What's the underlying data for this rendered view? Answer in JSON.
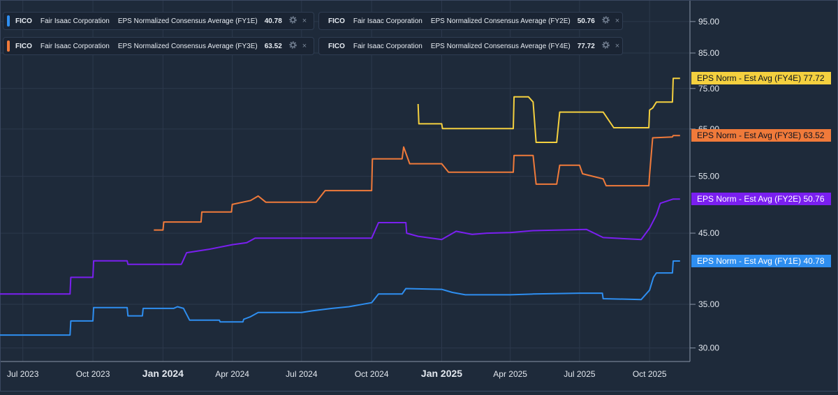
{
  "colors": {
    "background": "#1e2a3a",
    "grid": "#2c394c",
    "axis_text": "#e3e8ef",
    "fy1": "#2e8ef0",
    "fy2": "#7a1ff0",
    "fy3": "#f07a3a",
    "fy4": "#f4d03f"
  },
  "legend": [
    {
      "ticker": "FICO",
      "company": "Fair Isaac Corporation",
      "metric": "EPS Normalized Consensus Average (FY1E)",
      "value": "40.78",
      "color_key": "fy1"
    },
    {
      "ticker": "FICO",
      "company": "Fair Isaac Corporation",
      "metric": "EPS Normalized Consensus Average (FY2E)",
      "value": "50.76",
      "color_key": "fy2"
    },
    {
      "ticker": "FICO",
      "company": "Fair Isaac Corporation",
      "metric": "EPS Normalized Consensus Average (FY3E)",
      "value": "63.52",
      "color_key": "fy3"
    },
    {
      "ticker": "FICO",
      "company": "Fair Isaac Corporation",
      "metric": "EPS Normalized Consensus Average (FY4E)",
      "value": "77.72",
      "color_key": "fy4"
    }
  ],
  "legend_controls": {
    "settings_icon": "gear-icon",
    "close_icon": "close-icon",
    "close_glyph": "×"
  },
  "value_tags": [
    {
      "label": "EPS Norm - Est Avg (FY4E)",
      "value": "77.72",
      "color_key": "fy4"
    },
    {
      "label": "EPS Norm - Est Avg (FY3E)",
      "value": "63.52",
      "color_key": "fy3"
    },
    {
      "label": "EPS Norm - Est Avg (FY2E)",
      "value": "50.76",
      "color_key": "fy2"
    },
    {
      "label": "EPS Norm - Est Avg (FY1E)",
      "value": "40.78",
      "color_key": "fy1"
    }
  ],
  "chart_data": {
    "type": "line",
    "title": "",
    "xlabel": "",
    "ylabel": "",
    "x_ticks": [
      {
        "date": "2023-07-01",
        "label": "Jul 2023",
        "bold": false
      },
      {
        "date": "2023-10-01",
        "label": "Oct 2023",
        "bold": false
      },
      {
        "date": "2024-01-01",
        "label": "Jan 2024",
        "bold": true
      },
      {
        "date": "2024-04-01",
        "label": "Apr 2024",
        "bold": false
      },
      {
        "date": "2024-07-01",
        "label": "Jul 2024",
        "bold": false
      },
      {
        "date": "2024-10-01",
        "label": "Oct 2024",
        "bold": false
      },
      {
        "date": "2025-01-01",
        "label": "Jan 2025",
        "bold": true
      },
      {
        "date": "2025-04-01",
        "label": "Apr 2025",
        "bold": false
      },
      {
        "date": "2025-07-01",
        "label": "Jul 2025",
        "bold": false
      },
      {
        "date": "2025-10-01",
        "label": "Oct 2025",
        "bold": false
      }
    ],
    "y_ticks": [
      "30.00",
      "35.00",
      "45.00",
      "55.00",
      "65.00",
      "75.00",
      "85.00",
      "95.00"
    ],
    "y_scale": "log",
    "ylim": [
      28.6,
      100.5
    ],
    "xlim": [
      "2023-06-01",
      "2025-11-23"
    ],
    "grid": true,
    "series": [
      {
        "name": "EPS Normalized Consensus Average (FY1E)",
        "color_key": "fy1",
        "points": [
          [
            "2023-06-01",
            31.4
          ],
          [
            "2023-09-01",
            31.4
          ],
          [
            "2023-09-02",
            33.0
          ],
          [
            "2023-10-01",
            33.0
          ],
          [
            "2023-10-02",
            34.6
          ],
          [
            "2023-11-15",
            34.6
          ],
          [
            "2023-11-16",
            33.6
          ],
          [
            "2023-12-05",
            33.6
          ],
          [
            "2023-12-06",
            34.5
          ],
          [
            "2024-01-15",
            34.5
          ],
          [
            "2024-01-20",
            34.7
          ],
          [
            "2024-01-28",
            34.5
          ],
          [
            "2024-02-05",
            33.1
          ],
          [
            "2024-03-15",
            33.1
          ],
          [
            "2024-03-16",
            32.9
          ],
          [
            "2024-04-15",
            32.9
          ],
          [
            "2024-04-16",
            33.2
          ],
          [
            "2024-04-25",
            33.5
          ],
          [
            "2024-05-05",
            34.0
          ],
          [
            "2024-07-01",
            34.0
          ],
          [
            "2024-07-15",
            34.2
          ],
          [
            "2024-08-10",
            34.5
          ],
          [
            "2024-09-01",
            34.7
          ],
          [
            "2024-10-01",
            35.2
          ],
          [
            "2024-10-10",
            36.3
          ],
          [
            "2024-11-10",
            36.3
          ],
          [
            "2024-11-15",
            37.0
          ],
          [
            "2025-01-01",
            36.9
          ],
          [
            "2025-01-15",
            36.5
          ],
          [
            "2025-02-01",
            36.2
          ],
          [
            "2025-04-01",
            36.2
          ],
          [
            "2025-05-01",
            36.3
          ],
          [
            "2025-07-01",
            36.4
          ],
          [
            "2025-07-31",
            36.4
          ],
          [
            "2025-08-01",
            35.7
          ],
          [
            "2025-09-20",
            35.6
          ],
          [
            "2025-10-01",
            36.8
          ],
          [
            "2025-10-06",
            38.5
          ],
          [
            "2025-10-10",
            39.1
          ],
          [
            "2025-10-31",
            39.1
          ],
          [
            "2025-11-01",
            40.78
          ],
          [
            "2025-11-10",
            40.78
          ]
        ]
      },
      {
        "name": "EPS Normalized Consensus Average (FY2E)",
        "color_key": "fy2",
        "points": [
          [
            "2023-06-01",
            36.3
          ],
          [
            "2023-09-01",
            36.3
          ],
          [
            "2023-09-02",
            38.5
          ],
          [
            "2023-10-01",
            38.5
          ],
          [
            "2023-10-02",
            40.8
          ],
          [
            "2023-11-15",
            40.8
          ],
          [
            "2023-11-16",
            40.3
          ],
          [
            "2024-01-25",
            40.3
          ],
          [
            "2024-01-26",
            40.5
          ],
          [
            "2024-02-01",
            42.0
          ],
          [
            "2024-03-01",
            42.5
          ],
          [
            "2024-04-01",
            43.2
          ],
          [
            "2024-04-20",
            43.5
          ],
          [
            "2024-05-01",
            44.2
          ],
          [
            "2024-10-01",
            44.2
          ],
          [
            "2024-10-10",
            46.7
          ],
          [
            "2024-11-15",
            46.7
          ],
          [
            "2024-11-16",
            45.0
          ],
          [
            "2024-12-01",
            44.5
          ],
          [
            "2025-01-01",
            44.0
          ],
          [
            "2025-01-20",
            45.3
          ],
          [
            "2025-02-10",
            44.8
          ],
          [
            "2025-03-01",
            45.0
          ],
          [
            "2025-04-01",
            45.1
          ],
          [
            "2025-05-01",
            45.4
          ],
          [
            "2025-07-10",
            45.6
          ],
          [
            "2025-08-01",
            44.3
          ],
          [
            "2025-09-20",
            44.0
          ],
          [
            "2025-10-01",
            45.8
          ],
          [
            "2025-10-10",
            48.0
          ],
          [
            "2025-10-15",
            50.0
          ],
          [
            "2025-11-01",
            50.76
          ],
          [
            "2025-11-10",
            50.76
          ]
        ]
      },
      {
        "name": "EPS Normalized Consensus Average (FY3E)",
        "color_key": "fy3",
        "points": [
          [
            "2023-12-20",
            45.5
          ],
          [
            "2024-01-01",
            45.5
          ],
          [
            "2024-01-02",
            46.8
          ],
          [
            "2024-02-20",
            46.8
          ],
          [
            "2024-02-21",
            48.5
          ],
          [
            "2024-03-31",
            48.5
          ],
          [
            "2024-04-01",
            49.8
          ],
          [
            "2024-04-25",
            50.5
          ],
          [
            "2024-05-05",
            51.3
          ],
          [
            "2024-05-15",
            50.2
          ],
          [
            "2024-07-01",
            50.2
          ],
          [
            "2024-07-20",
            50.2
          ],
          [
            "2024-08-01",
            52.3
          ],
          [
            "2024-10-01",
            52.3
          ],
          [
            "2024-10-02",
            58.5
          ],
          [
            "2024-11-10",
            58.5
          ],
          [
            "2024-11-12",
            61.0
          ],
          [
            "2024-11-20",
            57.5
          ],
          [
            "2025-01-01",
            57.5
          ],
          [
            "2025-01-10",
            55.8
          ],
          [
            "2025-04-01",
            55.8
          ],
          [
            "2025-04-05",
            55.8
          ],
          [
            "2025-04-06",
            59.2
          ],
          [
            "2025-05-01",
            59.2
          ],
          [
            "2025-05-05",
            53.5
          ],
          [
            "2025-06-01",
            53.5
          ],
          [
            "2025-06-05",
            57.2
          ],
          [
            "2025-07-01",
            57.2
          ],
          [
            "2025-07-05",
            55.5
          ],
          [
            "2025-08-01",
            54.5
          ],
          [
            "2025-08-05",
            53.2
          ],
          [
            "2025-09-30",
            53.2
          ],
          [
            "2025-10-01",
            55.3
          ],
          [
            "2025-10-05",
            63.0
          ],
          [
            "2025-10-31",
            63.2
          ],
          [
            "2025-11-01",
            63.52
          ],
          [
            "2025-11-10",
            63.52
          ]
        ]
      },
      {
        "name": "EPS Normalized Consensus Average (FY4E)",
        "color_key": "fy4",
        "points": [
          [
            "2024-12-01",
            71.0
          ],
          [
            "2024-12-02",
            66.2
          ],
          [
            "2025-01-01",
            66.2
          ],
          [
            "2025-01-02",
            65.1
          ],
          [
            "2025-04-01",
            65.1
          ],
          [
            "2025-04-05",
            65.1
          ],
          [
            "2025-04-06",
            72.8
          ],
          [
            "2025-04-25",
            72.8
          ],
          [
            "2025-05-01",
            71.5
          ],
          [
            "2025-05-05",
            62.0
          ],
          [
            "2025-06-01",
            62.0
          ],
          [
            "2025-06-05",
            69.0
          ],
          [
            "2025-08-01",
            69.0
          ],
          [
            "2025-08-15",
            65.3
          ],
          [
            "2025-09-30",
            65.3
          ],
          [
            "2025-10-01",
            69.5
          ],
          [
            "2025-10-05",
            70.0
          ],
          [
            "2025-10-10",
            71.5
          ],
          [
            "2025-10-31",
            71.5
          ],
          [
            "2025-11-01",
            77.72
          ],
          [
            "2025-11-10",
            77.72
          ]
        ]
      }
    ]
  }
}
